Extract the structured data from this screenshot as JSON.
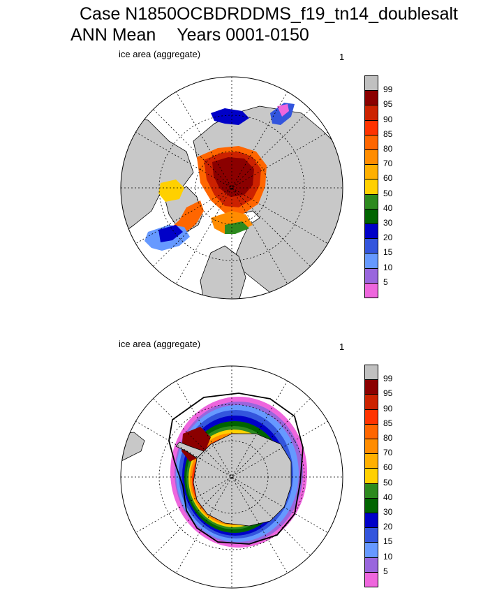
{
  "header": {
    "line1": "Case N1850OCBDRDDMS_f19_tn14_doublesalt",
    "line2a": "ANN Mean",
    "line2b": "Years 0001-0150"
  },
  "panels": [
    {
      "label": "ice area  (aggregate)",
      "number": "1",
      "hemisphere": "north"
    },
    {
      "label": "ice area  (aggregate)",
      "number": "1",
      "hemisphere": "south"
    }
  ],
  "colorbar": {
    "labels": [
      "99",
      "95",
      "90",
      "85",
      "80",
      "70",
      "60",
      "50",
      "40",
      "30",
      "20",
      "15",
      "10",
      "5"
    ],
    "colors": [
      "#c0c0c0",
      "#8b0000",
      "#cc2200",
      "#ff3300",
      "#ff6600",
      "#ff8c00",
      "#ffb000",
      "#ffd000",
      "#2d8a1e",
      "#006400",
      "#0000c8",
      "#3355dd",
      "#6699ff",
      "#9966dd",
      "#ee66dd"
    ]
  },
  "colors": {
    "land": "#c8c8c8",
    "ocean": "#ffffff"
  }
}
